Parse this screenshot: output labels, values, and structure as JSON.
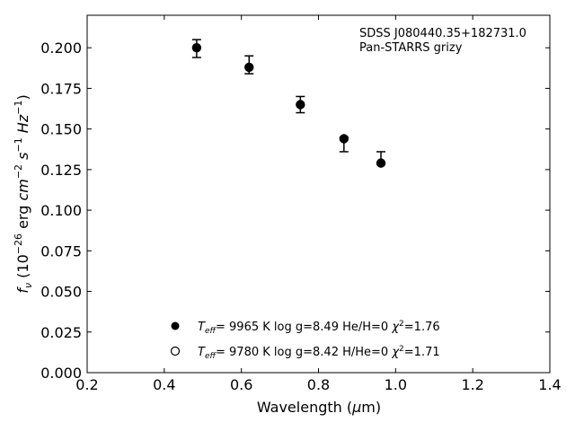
{
  "chart_data": {
    "type": "scatter",
    "annotation_lines": [
      "SDSS J080440.35+182731.0",
      "Pan-STARRS grizy"
    ],
    "xlabel": "Wavelength (μm)",
    "ylabel": "f_ν (10^-26 erg cm^-2 s^-1 Hz^-1)",
    "xlim": [
      0.2,
      1.4
    ],
    "ylim": [
      0.0,
      0.22
    ],
    "xticks": [
      "0.2",
      "0.4",
      "0.6",
      "0.8",
      "1.0",
      "1.2",
      "1.4"
    ],
    "yticks": [
      "0.000",
      "0.025",
      "0.050",
      "0.075",
      "0.100",
      "0.125",
      "0.150",
      "0.175",
      "0.200"
    ],
    "grid": false,
    "legend_position": "lower-center",
    "series": [
      {
        "name": "Teff= 9965 K log g=8.49 He/H=0 χ2=1.76",
        "marker": "filled-circle",
        "x": [
          0.484,
          0.62,
          0.753,
          0.866,
          0.962
        ],
        "y": [
          0.2,
          0.188,
          0.165,
          0.144,
          0.129
        ]
      },
      {
        "name": "Teff= 9780 K log g=8.42 H/He=0 χ2=1.71",
        "marker": "open-circle",
        "x": [
          0.484,
          0.62,
          0.753,
          0.866,
          0.962
        ],
        "y": [
          0.2,
          0.188,
          0.165,
          0.144,
          0.129
        ]
      }
    ],
    "observations": {
      "x": [
        0.484,
        0.62,
        0.753,
        0.866,
        0.962
      ],
      "y": [
        0.2,
        0.188,
        0.165,
        0.144,
        0.129
      ],
      "err_high": [
        0.205,
        0.195,
        0.17,
        0.145,
        0.136
      ],
      "err_low": [
        0.194,
        0.184,
        0.16,
        0.136,
        0.128
      ]
    },
    "legend": [
      {
        "marker": "filled-circle",
        "teff": "9965 K",
        "logg": "log g=8.49",
        "comp": "He/H=0",
        "chi2": "=1.76"
      },
      {
        "marker": "open-circle",
        "teff": "9780 K",
        "logg": "log g=8.42",
        "comp": "H/He=0",
        "chi2": "=1.71"
      }
    ]
  }
}
